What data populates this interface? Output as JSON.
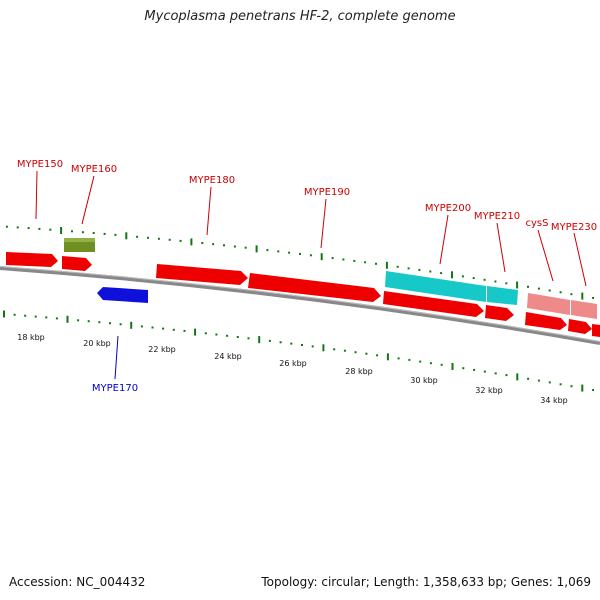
{
  "title": "Mycoplasma penetrans HF-2, complete genome",
  "footer": {
    "accession": "Accession: NC_004432",
    "summary": "Topology: circular; Length: 1,358,633 bp; Genes: 1,069"
  },
  "colors": {
    "cds": "#ee0000",
    "cds_reverse": "#1010dd",
    "highlight_cyan": "#16c8c8",
    "highlight_pink": "#ee8a8a",
    "olive": "#6f8f22",
    "tick_green": "#117711",
    "backbone": "#888888",
    "label_red": "#cc0000",
    "label_blue": "#0000cc"
  },
  "scale_labels": [
    "18 kbp",
    "20 kbp",
    "22 kbp",
    "24 kbp",
    "26 kbp",
    "28 kbp",
    "30 kbp",
    "32 kbp",
    "34 kbp"
  ],
  "gene_labels": [
    {
      "id": "g150",
      "text": "MYPE150",
      "strand": "forward"
    },
    {
      "id": "g160",
      "text": "MYPE160",
      "strand": "forward"
    },
    {
      "id": "g180",
      "text": "MYPE180",
      "strand": "forward"
    },
    {
      "id": "g190",
      "text": "MYPE190",
      "strand": "forward"
    },
    {
      "id": "g200",
      "text": "MYPE200",
      "strand": "forward"
    },
    {
      "id": "g210",
      "text": "MYPE210",
      "strand": "forward"
    },
    {
      "id": "gcys",
      "text": "cysS",
      "strand": "forward"
    },
    {
      "id": "g230",
      "text": "MYPE230",
      "strand": "forward"
    },
    {
      "id": "g170",
      "text": "MYPE170",
      "strand": "reverse"
    }
  ]
}
